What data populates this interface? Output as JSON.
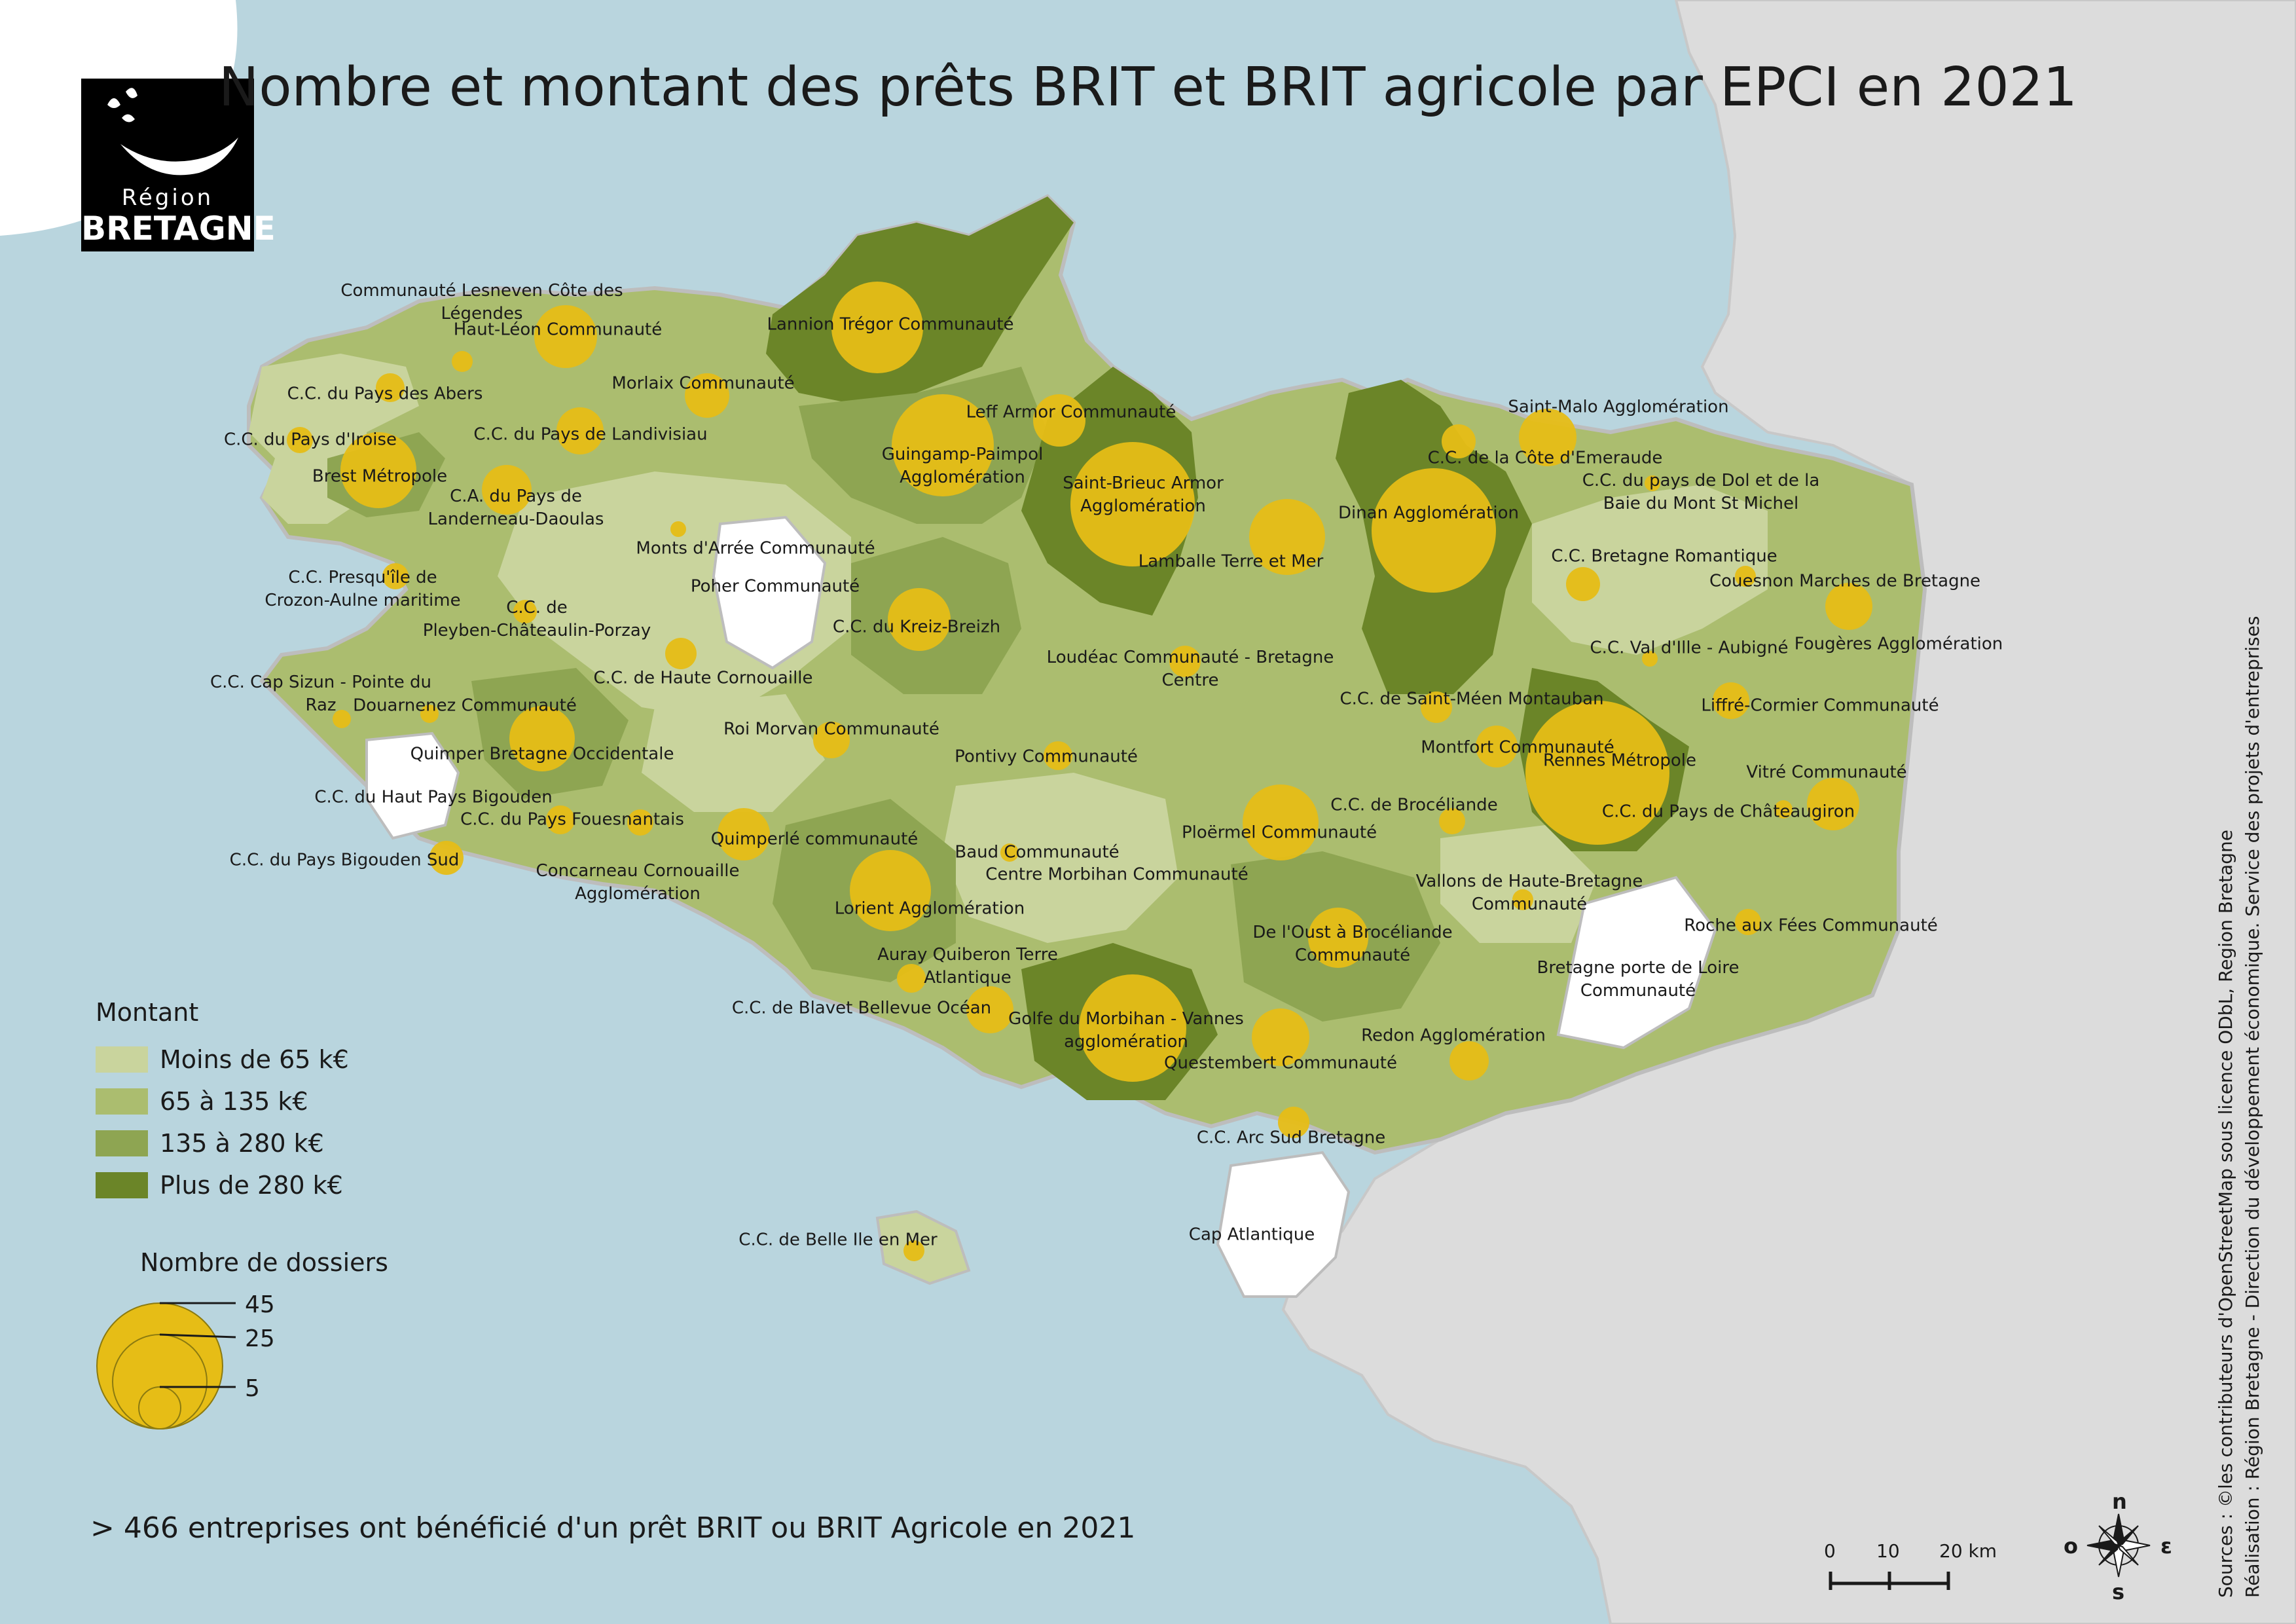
{
  "title": "Nombre et montant des prêts BRIT et BRIT agricole par EPCI en 2021",
  "logo": {
    "region": "Région",
    "name": "BRETAGNE"
  },
  "legend": {
    "montant_title": "Montant",
    "classes": [
      {
        "label": "Moins de 65 k€",
        "color": "#c9d49d"
      },
      {
        "label": "65 à 135 k€",
        "color": "#abbd6f"
      },
      {
        "label": "135 à 280 k€",
        "color": "#8ea552"
      },
      {
        "label": "Plus de 280 k€",
        "color": "#6b8528"
      }
    ],
    "size_title": "Nombre de dossiers",
    "size_values": [
      "45",
      "25",
      "5"
    ]
  },
  "footer": "> 466 entreprises ont bénéficié d'un prêt BRIT ou BRIT Agricole en 2021",
  "sources_line1": "Sources : ©les contributeurs d'OpenStreetMap sous licence ODbL, Region Bretagne",
  "sources_line2": "Réalisation : Région Bretagne - Direction du développement économique. Service des projets d'entreprises",
  "scale": {
    "labels": [
      "0",
      "10",
      "20 km"
    ]
  },
  "compass": {
    "n": "n",
    "s": "s",
    "e": "ε",
    "o": "o"
  },
  "colors": {
    "sea": "#b9d5de",
    "land_outside": "#dcdcdc",
    "bubble": "#e6bd16",
    "no_data": "#ffffff"
  },
  "epci": [
    {
      "name": "Communauté Lesneven Côte des\nLégendes",
      "class": 1
    },
    {
      "name": "Haut-Léon Communauté",
      "class": 1
    },
    {
      "name": "C.C. du Pays des Abers",
      "class": 1
    },
    {
      "name": "C.C. du Pays d'Iroise",
      "class": 0
    },
    {
      "name": "C.C. du Pays de Landivisiau",
      "class": 1
    },
    {
      "name": "Morlaix Communauté",
      "class": 1
    },
    {
      "name": "Brest Métropole",
      "class": 2
    },
    {
      "name": "C.A. du Pays de\nLanderneau-Daoulas",
      "class": 1
    },
    {
      "name": "Lannion Trégor Communauté",
      "class": 3
    },
    {
      "name": "Leff Armor Communauté",
      "class": 2
    },
    {
      "name": "Guingamp-Paimpol\nAgglomération",
      "class": 2
    },
    {
      "name": "Saint-Brieuc Armor\nAgglomération",
      "class": 3
    },
    {
      "name": "Monts d'Arrée Communauté",
      "class": 0
    },
    {
      "name": "Poher Communauté",
      "class": -1
    },
    {
      "name": "C.C. Presqu'île de\nCrozon-Aulne maritime",
      "class": 0
    },
    {
      "name": "C.C. de\nPleyben-Châteaulin-Porzay",
      "class": 1
    },
    {
      "name": "C.C. du Kreiz-Breizh",
      "class": 2
    },
    {
      "name": "Lamballe Terre et Mer",
      "class": 1
    },
    {
      "name": "Dinan Agglomération",
      "class": 3
    },
    {
      "name": "C.C. de la Côte d'Emeraude",
      "class": 2
    },
    {
      "name": "Saint-Malo Agglomération",
      "class": 1
    },
    {
      "name": "C.C. du pays de Dol et de la\nBaie du Mont St Michel",
      "class": 0
    },
    {
      "name": "C.C. Bretagne Romantique",
      "class": 0
    },
    {
      "name": "Couesnon Marches de Bretagne",
      "class": 0
    },
    {
      "name": "Fougères Agglomération",
      "class": 1
    },
    {
      "name": "C.C. Val d'Ille - Aubigné",
      "class": 0
    },
    {
      "name": "C.C. de Haute Cornouaille",
      "class": 0
    },
    {
      "name": "Loudéac Communauté - Bretagne\nCentre",
      "class": 1
    },
    {
      "name": "C.C. Cap Sizun - Pointe du\nRaz",
      "class": 0
    },
    {
      "name": "Douarnenez Communauté",
      "class": 2
    },
    {
      "name": "C.C. de Saint-Méen Montauban",
      "class": 3
    },
    {
      "name": "Liffré-Cormier Communauté",
      "class": 1
    },
    {
      "name": "Roi Morvan Communauté",
      "class": 0
    },
    {
      "name": "Quimper Bretagne Occidentale",
      "class": 2
    },
    {
      "name": "Pontivy Communauté",
      "class": 1
    },
    {
      "name": "Montfort Communauté",
      "class": 0
    },
    {
      "name": "Rennes Métropole",
      "class": 3
    },
    {
      "name": "Vitré Communauté",
      "class": 1
    },
    {
      "name": "C.C. du Haut Pays Bigouden",
      "class": -1
    },
    {
      "name": "C.C. du Pays Fouesnantais",
      "class": 1
    },
    {
      "name": "C.C. de Brocéliande",
      "class": 0
    },
    {
      "name": "C.C. du Pays de Châteaugiron",
      "class": 3
    },
    {
      "name": "Quimperlé communauté",
      "class": 1
    },
    {
      "name": "Ploërmel Communauté",
      "class": 1
    },
    {
      "name": "Baud Communauté",
      "class": 0
    },
    {
      "name": "C.C. du Pays Bigouden Sud",
      "class": 0
    },
    {
      "name": "Concarneau Cornouaille\nAgglomération",
      "class": 1
    },
    {
      "name": "Centre Morbihan Communauté",
      "class": 0
    },
    {
      "name": "Lorient Agglomération",
      "class": 2
    },
    {
      "name": "Vallons de Haute-Bretagne\nCommunauté",
      "class": 0
    },
    {
      "name": "Roche aux Fées Communauté",
      "class": 0
    },
    {
      "name": "De l'Oust à Brocéliande\nCommunauté",
      "class": 2
    },
    {
      "name": "Auray Quiberon Terre\nAtlantique",
      "class": 0
    },
    {
      "name": "Bretagne porte de Loire\nCommunauté",
      "class": -1
    },
    {
      "name": "C.C. de Blavet Bellevue Océan",
      "class": 1
    },
    {
      "name": "Golfe du Morbihan - Vannes\nagglomération",
      "class": 3
    },
    {
      "name": "Redon Agglomération",
      "class": 1
    },
    {
      "name": "Questembert Communauté",
      "class": 1
    },
    {
      "name": "C.C. Arc Sud Bretagne",
      "class": 1
    },
    {
      "name": "C.C. de Belle Ile en Mer",
      "class": 1
    },
    {
      "name": "Cap Atlantique",
      "class": -1
    }
  ]
}
